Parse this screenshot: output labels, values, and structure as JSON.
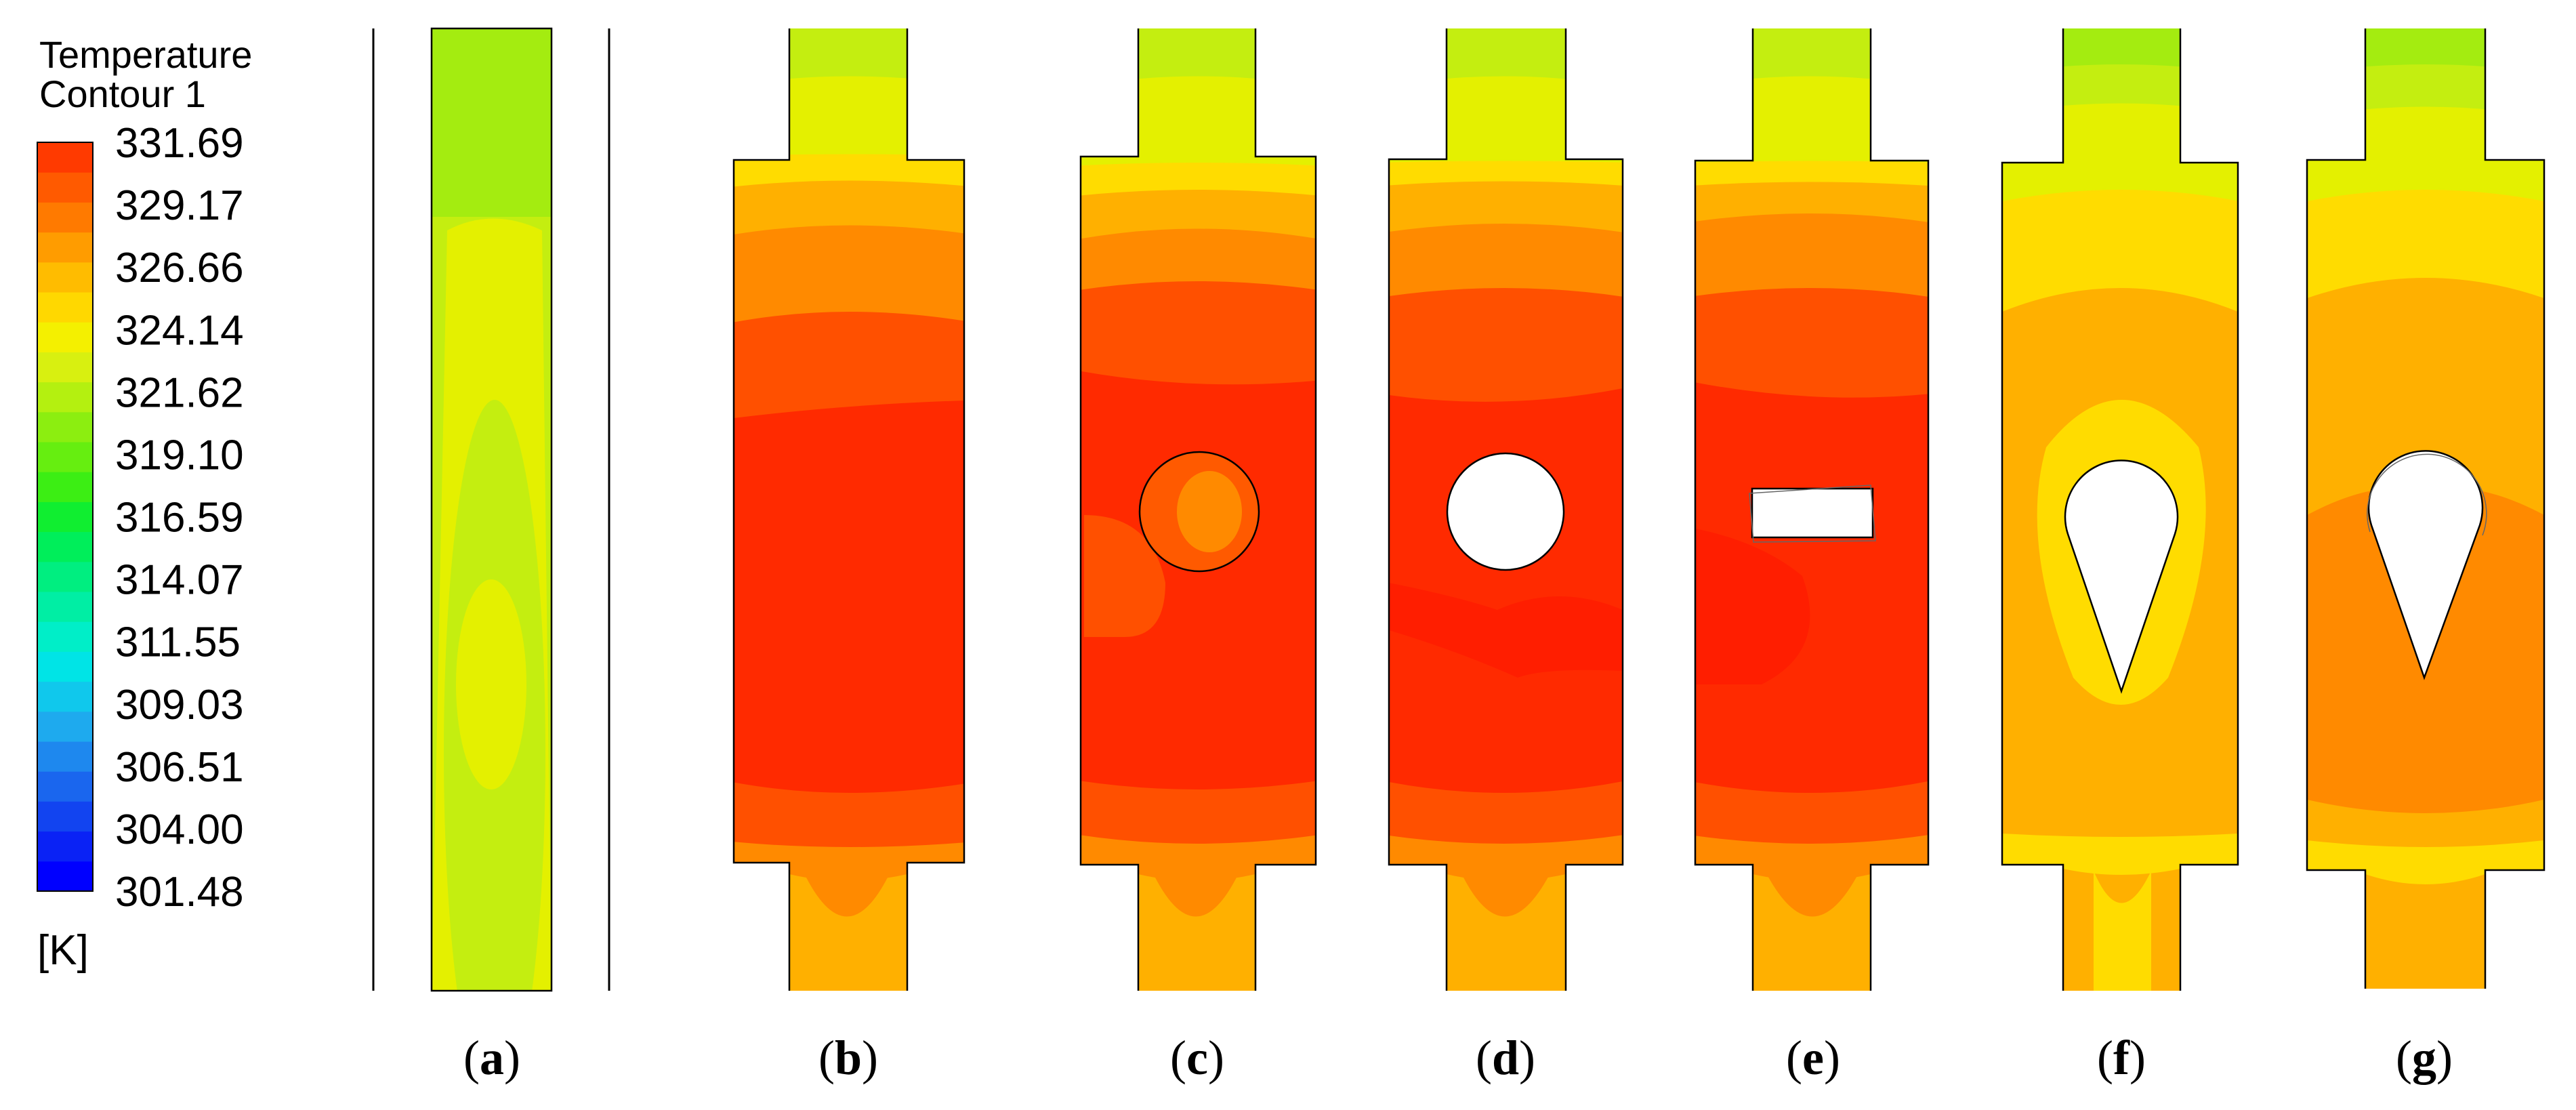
{
  "legend": {
    "title": "Temperature",
    "subtitle": "Contour 1",
    "unit": "[K]",
    "ticks": [
      "331.69",
      "329.17",
      "326.66",
      "324.14",
      "321.62",
      "319.10",
      "316.59",
      "314.07",
      "311.55",
      "309.03",
      "306.51",
      "304.00",
      "301.48"
    ],
    "band_colors": [
      "#0000ff",
      "#0a22f5",
      "#1244f0",
      "#1a66ee",
      "#1e88ee",
      "#1eaaee",
      "#10c8ec",
      "#00e4e6",
      "#00eec8",
      "#00eea4",
      "#00ee80",
      "#00ee5a",
      "#10ee30",
      "#3cee14",
      "#66ee10",
      "#8cee10",
      "#b4f010",
      "#d8f010",
      "#f4f000",
      "#ffd800",
      "#ffbc00",
      "#ff9c00",
      "#ff7a00",
      "#ff5a00",
      "#ff3a00"
    ]
  },
  "panels": [
    {
      "label": "a",
      "obstacle": "none"
    },
    {
      "label": "b",
      "obstacle": "none"
    },
    {
      "label": "c",
      "obstacle": "circle"
    },
    {
      "label": "d",
      "obstacle": "circle"
    },
    {
      "label": "e",
      "obstacle": "rectangle"
    },
    {
      "label": "f",
      "obstacle": "drop"
    },
    {
      "label": "g",
      "obstacle": "drop"
    }
  ],
  "colors": {
    "hot": "#ff2a00",
    "red_orange": "#ff5000",
    "orange": "#ff8a00",
    "light_orange": "#ffb000",
    "yellow": "#ffdc00",
    "yellow_green": "#e4f000",
    "light_green": "#c4ee10",
    "green": "#a4ec10"
  }
}
